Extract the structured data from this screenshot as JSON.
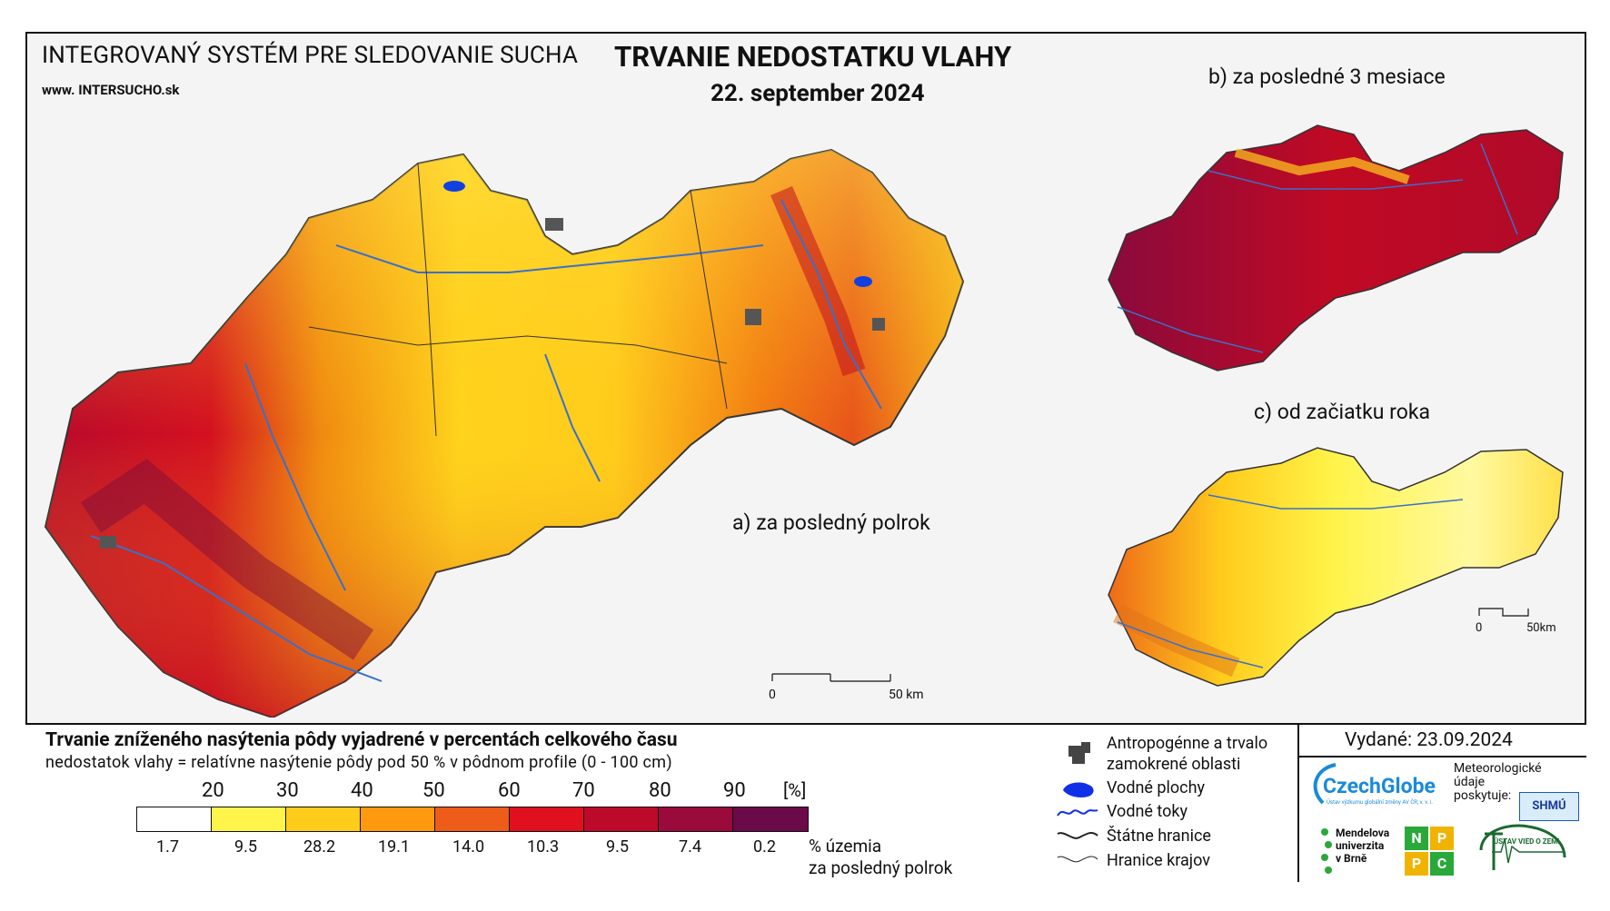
{
  "header": {
    "system_name": "INTEGROVANÝ SYSTÉM PRE SLEDOVANIE SUCHA",
    "website": "www. INTERSUCHO.sk",
    "title": "TRVANIE NEDOSTATKU VLAHY",
    "date": "22. september 2024"
  },
  "maps": {
    "main_label": "a) za posledný polrok",
    "b_label": "b) za posledné 3 mesiace",
    "c_label": "c) od začiatku roka",
    "main_scale": {
      "zero": "0",
      "end": "50 km"
    },
    "small_scale": {
      "zero": "0",
      "end": "50km"
    }
  },
  "legend": {
    "title": "Trvanie zníženého nasýtenia pôdy vyjadrené v percentách celkového času",
    "subtitle": "nedostatok vlahy = relatívne nasýtenie pôdy pod 50 % v pôdnom profile (0 - 100 cm)",
    "unit": "[%]",
    "breaks": [
      "20",
      "30",
      "40",
      "50",
      "60",
      "70",
      "80",
      "90"
    ],
    "colors": [
      "#ffffff",
      "#fff44a",
      "#ffcc1c",
      "#ff9a0e",
      "#ee5c1a",
      "#e0101e",
      "#be0a2a",
      "#9a0a3a",
      "#6a0a48"
    ],
    "percents": [
      "1.7",
      "9.5",
      "28.2",
      "19.1",
      "14.0",
      "10.3",
      "9.5",
      "7.4",
      "0.2"
    ],
    "percent_caption_1": "% územia",
    "percent_caption_2": "za posledný polrok"
  },
  "symbols": {
    "antropo_1": "Antropogénne a trvalo",
    "antropo_2": "zamokrené oblasti",
    "water_areas": "Vodné plochy",
    "rivers": "Vodné toky",
    "state_border": "Štátne hranice",
    "region_border": "Hranice krajov"
  },
  "issued": {
    "label": "Vydané: 23.09.2024"
  },
  "logos": {
    "czechglobe": "CzechGlobe",
    "czechglobe_sub": "Ústav výzkumu globální změny AV ČR, v. v. i.",
    "meteo_1": "Meteorologické",
    "meteo_2": "údaje",
    "meteo_3": "poskytuje:",
    "shmu": "SHMÚ",
    "mendel_1": "Mendelova",
    "mendel_2": "univerzita",
    "mendel_3": "v Brně",
    "nppc_n": "N",
    "nppc_p1": "P",
    "nppc_p2": "P",
    "nppc_c": "C",
    "uvz": "ÚSTAV VIED O ZEMI"
  }
}
